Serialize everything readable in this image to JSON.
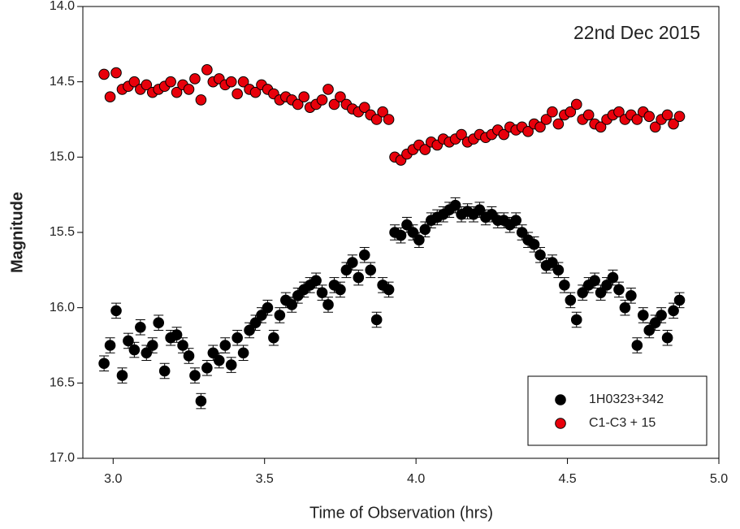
{
  "chart_data": {
    "type": "scatter",
    "annotation": "22nd Dec 2015",
    "x_label": "Time of Observation (hrs)",
    "y_label": "Magnitude",
    "xlim": [
      2.9,
      5.0
    ],
    "xticks": [
      {
        "value": 3,
        "label": "3.0"
      },
      3.5,
      {
        "value": 4,
        "label": "4.0"
      },
      4.5,
      {
        "value": 5,
        "label": "5.0"
      }
    ],
    "ylim": [
      14.0,
      17.0
    ],
    "y_inverted": true,
    "yticks": [
      {
        "value": 14,
        "label": "14.0"
      },
      14.5,
      {
        "value": 15,
        "label": "15.0"
      },
      15.5,
      {
        "value": 16,
        "label": "16.0"
      },
      16.5,
      {
        "value": 17,
        "label": "17.0"
      }
    ],
    "legend_position": "lower right",
    "x": [
      2.97,
      2.99,
      3.01,
      3.03,
      3.05,
      3.07,
      3.09,
      3.11,
      3.13,
      3.15,
      3.17,
      3.19,
      3.21,
      3.23,
      3.25,
      3.27,
      3.29,
      3.31,
      3.33,
      3.35,
      3.37,
      3.39,
      3.41,
      3.43,
      3.45,
      3.47,
      3.49,
      3.51,
      3.53,
      3.55,
      3.57,
      3.59,
      3.61,
      3.63,
      3.65,
      3.67,
      3.69,
      3.71,
      3.73,
      3.75,
      3.77,
      3.79,
      3.81,
      3.83,
      3.85,
      3.87,
      3.89,
      3.91,
      3.93,
      3.95,
      3.97,
      3.99,
      4.01,
      4.03,
      4.05,
      4.07,
      4.09,
      4.11,
      4.13,
      4.15,
      4.17,
      4.19,
      4.21,
      4.23,
      4.25,
      4.27,
      4.29,
      4.31,
      4.33,
      4.35,
      4.37,
      4.39,
      4.41,
      4.43,
      4.45,
      4.47,
      4.49,
      4.51,
      4.53,
      4.55,
      4.57,
      4.59,
      4.61,
      4.63,
      4.65,
      4.67,
      4.69,
      4.71,
      4.73,
      4.75,
      4.77,
      4.79,
      4.81,
      4.83,
      4.85,
      4.87
    ],
    "series": [
      {
        "name": "1H0323+342",
        "color": "#000000",
        "error": 0.05,
        "values": [
          16.37,
          16.25,
          16.02,
          16.45,
          16.22,
          16.28,
          16.13,
          16.3,
          16.25,
          16.1,
          16.42,
          16.2,
          16.18,
          16.25,
          16.32,
          16.45,
          16.62,
          16.4,
          16.3,
          16.35,
          16.25,
          16.38,
          16.2,
          16.3,
          16.15,
          16.1,
          16.05,
          16.0,
          16.2,
          16.05,
          15.95,
          15.98,
          15.92,
          15.88,
          15.85,
          15.82,
          15.9,
          15.98,
          15.85,
          15.88,
          15.75,
          15.7,
          15.8,
          15.65,
          15.75,
          16.08,
          15.85,
          15.88,
          15.5,
          15.52,
          15.45,
          15.5,
          15.55,
          15.48,
          15.42,
          15.4,
          15.38,
          15.35,
          15.32,
          15.38,
          15.36,
          15.38,
          15.35,
          15.4,
          15.38,
          15.42,
          15.42,
          15.45,
          15.42,
          15.5,
          15.55,
          15.58,
          15.65,
          15.72,
          15.7,
          15.75,
          15.85,
          15.95,
          16.08,
          15.9,
          15.85,
          15.82,
          15.9,
          15.85,
          15.8,
          15.88,
          16.0,
          15.92,
          16.25,
          16.05,
          16.15,
          16.1,
          16.05,
          16.2,
          16.02,
          15.95
        ]
      },
      {
        "name": "C1-C3 + 15",
        "color": "#e8000b",
        "values": [
          14.45,
          14.6,
          14.44,
          14.55,
          14.53,
          14.5,
          14.55,
          14.52,
          14.57,
          14.55,
          14.53,
          14.5,
          14.57,
          14.52,
          14.55,
          14.48,
          14.62,
          14.42,
          14.5,
          14.48,
          14.52,
          14.5,
          14.58,
          14.5,
          14.55,
          14.57,
          14.52,
          14.55,
          14.58,
          14.62,
          14.6,
          14.62,
          14.65,
          14.6,
          14.67,
          14.65,
          14.62,
          14.55,
          14.65,
          14.6,
          14.65,
          14.68,
          14.7,
          14.67,
          14.72,
          14.75,
          14.7,
          14.75,
          15.0,
          15.02,
          14.98,
          14.95,
          14.92,
          14.95,
          14.9,
          14.92,
          14.88,
          14.9,
          14.88,
          14.85,
          14.9,
          14.88,
          14.85,
          14.87,
          14.85,
          14.82,
          14.85,
          14.8,
          14.82,
          14.8,
          14.83,
          14.78,
          14.8,
          14.75,
          14.7,
          14.78,
          14.72,
          14.7,
          14.65,
          14.75,
          14.72,
          14.78,
          14.8,
          14.75,
          14.72,
          14.7,
          14.75,
          14.72,
          14.75,
          14.7,
          14.73,
          14.8,
          14.75,
          14.72,
          14.78,
          14.73
        ]
      }
    ]
  }
}
